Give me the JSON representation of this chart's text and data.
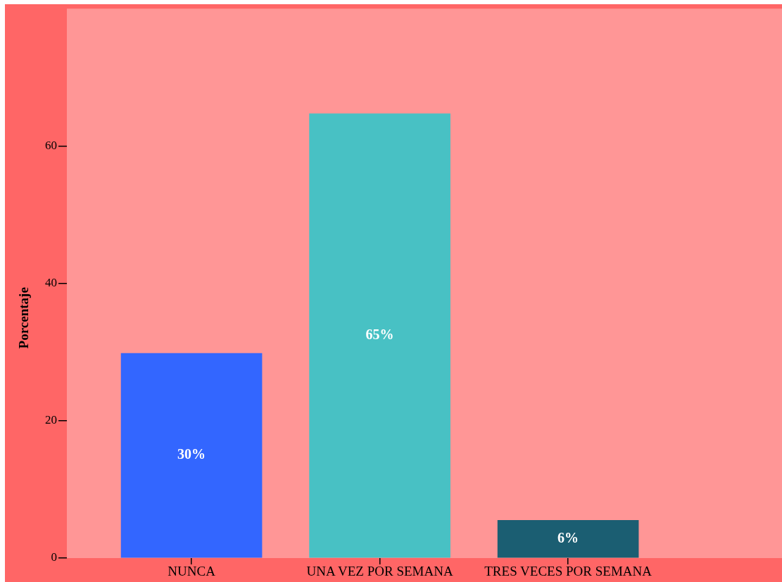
{
  "chart_data": {
    "type": "bar",
    "categories": [
      "NUNCA",
      "UNA VEZ POR SEMANA",
      "TRES VECES POR SEMANA"
    ],
    "values": [
      29.8,
      64.7,
      5.5
    ],
    "colors": [
      "#3366ff",
      "#48c1c4",
      "#1b5e72"
    ],
    "value_labels": [
      "30%",
      "65%",
      "6%"
    ],
    "ylabel": "Porcentaje",
    "ylim": [
      0,
      80
    ],
    "yticks": [
      0,
      20,
      40,
      60
    ]
  }
}
